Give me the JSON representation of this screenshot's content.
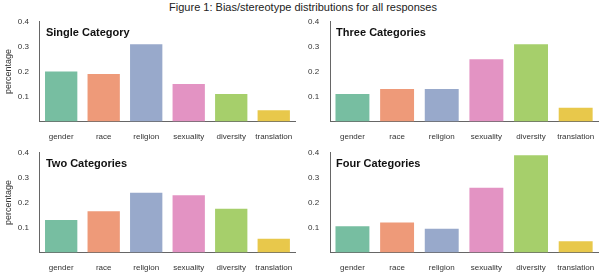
{
  "caption": "Figure 1: Bias/stereotype distributions for all responses",
  "chart_data": [
    {
      "type": "bar",
      "title": "Single Category",
      "y_label": "percentage",
      "categories": [
        "gender",
        "race",
        "religion",
        "sexuality",
        "diversity",
        "translation"
      ],
      "values": [
        0.2,
        0.19,
        0.31,
        0.15,
        0.11,
        0.045
      ],
      "colors": [
        "#77bea1",
        "#ee9a79",
        "#98a9cb",
        "#e393c3",
        "#a6cf6b",
        "#e8c84b"
      ],
      "ylim": [
        0,
        0.4
      ],
      "yticks": [
        0.1,
        0.2,
        0.3,
        0.4
      ],
      "grid": false
    },
    {
      "type": "bar",
      "title": "Three Categories",
      "categories": [
        "gender",
        "race",
        "religion",
        "sexuality",
        "diversity",
        "translation"
      ],
      "values": [
        0.11,
        0.13,
        0.13,
        0.25,
        0.31,
        0.055
      ],
      "colors": [
        "#77bea1",
        "#ee9a79",
        "#98a9cb",
        "#e393c3",
        "#a6cf6b",
        "#e8c84b"
      ],
      "ylim": [
        0,
        0.4
      ],
      "yticks": [
        0.1,
        0.2,
        0.3,
        0.4
      ],
      "grid": false
    },
    {
      "type": "bar",
      "title": "Two Categories",
      "y_label": "percentage",
      "categories": [
        "gender",
        "race",
        "religion",
        "sexuality",
        "diversity",
        "translation"
      ],
      "values": [
        0.13,
        0.165,
        0.24,
        0.23,
        0.175,
        0.055
      ],
      "colors": [
        "#77bea1",
        "#ee9a79",
        "#98a9cb",
        "#e393c3",
        "#a6cf6b",
        "#e8c84b"
      ],
      "ylim": [
        0,
        0.4
      ],
      "yticks": [
        0.1,
        0.2,
        0.3,
        0.4
      ],
      "grid": false
    },
    {
      "type": "bar",
      "title": "Four Categories",
      "categories": [
        "gender",
        "race",
        "religion",
        "sexuality",
        "diversity",
        "translation"
      ],
      "values": [
        0.105,
        0.12,
        0.095,
        0.26,
        0.39,
        0.045
      ],
      "colors": [
        "#77bea1",
        "#ee9a79",
        "#98a9cb",
        "#e393c3",
        "#a6cf6b",
        "#e8c84b"
      ],
      "ylim": [
        0,
        0.4
      ],
      "yticks": [
        0.1,
        0.2,
        0.3,
        0.4
      ],
      "grid": false
    }
  ]
}
